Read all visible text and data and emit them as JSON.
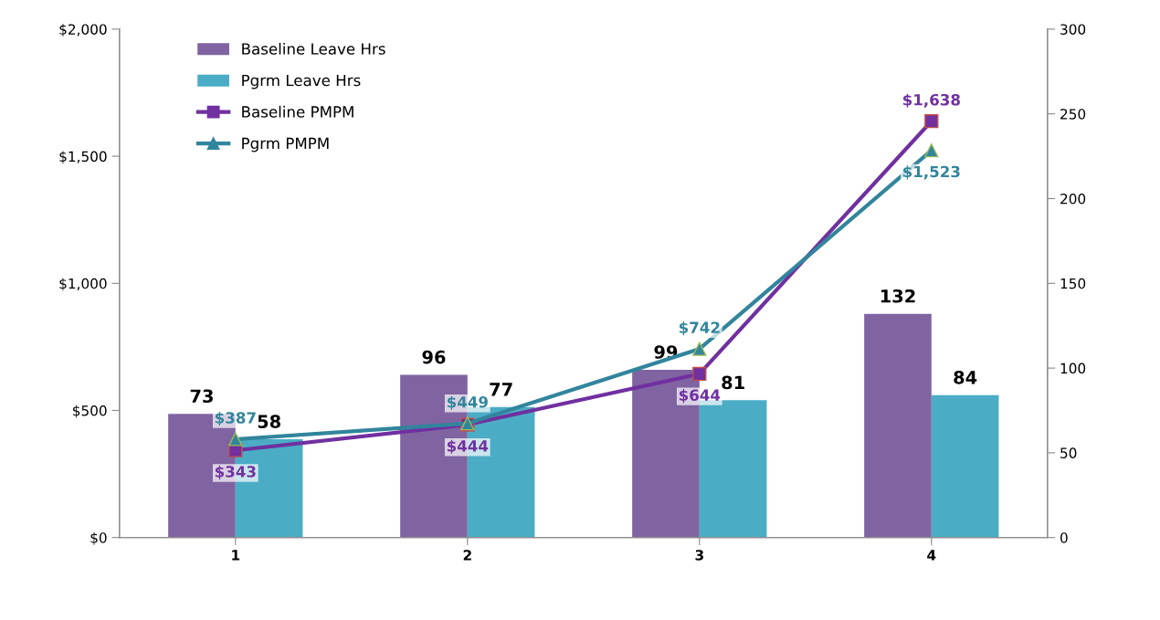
{
  "chart_data": {
    "type": "bar",
    "categories": [
      "1",
      "2",
      "3",
      "4"
    ],
    "series": [
      {
        "name": "Baseline Leave Hrs",
        "axis": "y2",
        "color": "#8064a2",
        "values": [
          73,
          96,
          99,
          132
        ],
        "value_labels": [
          "73",
          "96",
          "99",
          "132"
        ]
      },
      {
        "name": "Pgrm Leave Hrs",
        "axis": "y2",
        "color": "#4bacc6",
        "values": [
          58,
          77,
          81,
          84
        ],
        "value_labels": [
          "58",
          "77",
          "81",
          "84"
        ]
      },
      {
        "name": "Baseline PMPM",
        "type": "line",
        "axis": "y",
        "color": "#7030a0",
        "marker": "square",
        "values": [
          343,
          444,
          644,
          1638
        ],
        "value_labels": [
          "$343",
          "$444",
          "$644",
          "$1,638"
        ]
      },
      {
        "name": "Pgrm PMPM",
        "type": "line",
        "axis": "y",
        "color": "#31859c",
        "marker": "triangle",
        "values": [
          387,
          449,
          742,
          1523
        ],
        "value_labels": [
          "$387",
          "$449",
          "$742",
          "$1,523"
        ]
      }
    ],
    "ylim": [
      0,
      2000
    ],
    "yticks": [
      {
        "value": 0,
        "label": "$0"
      },
      {
        "value": 500,
        "label": "$500"
      },
      {
        "value": 1000,
        "label": "$1,000"
      },
      {
        "value": 1500,
        "label": "$1,500"
      },
      {
        "value": 2000,
        "label": "$2,000"
      }
    ],
    "y2lim": [
      0,
      300
    ],
    "y2ticks": [
      0,
      50,
      100,
      150,
      200,
      250,
      300
    ],
    "grid": false,
    "legend": "top left",
    "line_style": "solid"
  }
}
